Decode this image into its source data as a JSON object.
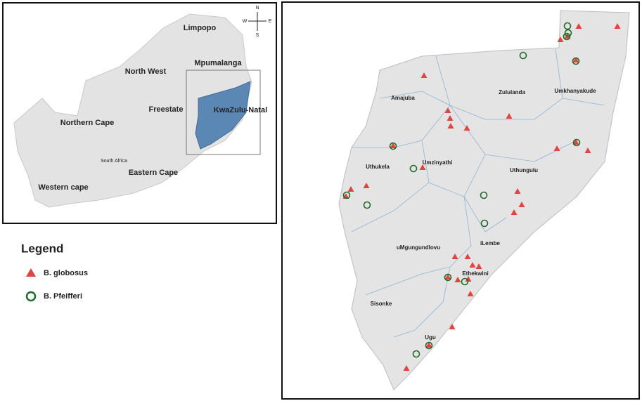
{
  "inset_map": {
    "provinces": [
      "Limpopo",
      "North West",
      "Mpumalanga",
      "Freestate",
      "KwaZulu-Natal",
      "Northern Cape",
      "Eastern Cape",
      "Western cape"
    ],
    "country_label": "South Africa",
    "compass": {
      "n": "N",
      "e": "E",
      "s": "S",
      "w": "W"
    }
  },
  "main_map": {
    "districts": [
      "Zululanda",
      "Umkhanyakude",
      "Amajuba",
      "Umzinyathi",
      "Uthukela",
      "Uthungulu",
      "iLembe",
      "uMgungundlovu",
      "Ethekwini",
      "Sisonke",
      "Ugu"
    ]
  },
  "legend": {
    "title": "Legend",
    "items": [
      "B. globosus",
      "B. Pfeifferi"
    ]
  }
}
